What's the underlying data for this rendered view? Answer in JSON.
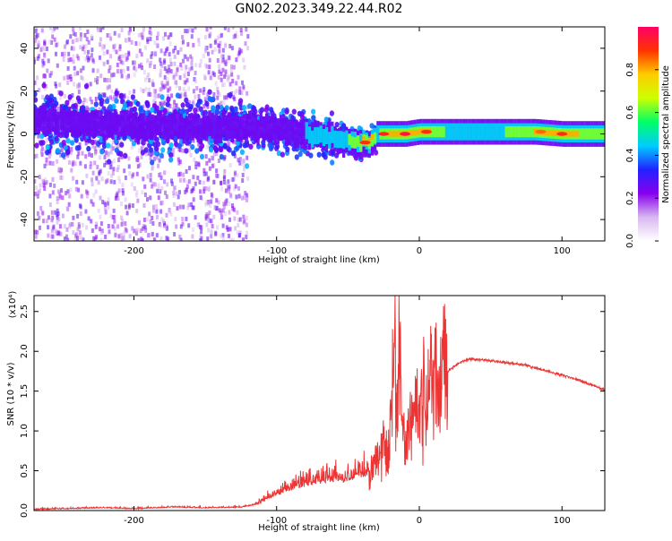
{
  "title": "GN02.2023.349.22.44.R02",
  "chart_data": [
    {
      "type": "heatmap",
      "xlabel": "Height of straight line (km)",
      "ylabel": "Frequency (Hz)",
      "xlim": [
        -270,
        130
      ],
      "ylim": [
        -50,
        50
      ],
      "x_ticks": [
        -200,
        -100,
        0,
        100
      ],
      "x_tick_labels": [
        "-200",
        "-100",
        "0",
        "100"
      ],
      "y_ticks": [
        -40,
        -20,
        0,
        20,
        40
      ],
      "y_tick_labels": [
        "-40",
        "-20",
        "0",
        "20",
        "40"
      ],
      "grid": false,
      "colorbar": {
        "label": "Normalized spectral amplitude",
        "range": [
          0,
          1
        ],
        "ticks": [
          0.0,
          0.2,
          0.4,
          0.6,
          0.8
        ],
        "tick_labels": [
          "0.0",
          "0.2",
          "0.4",
          "0.6",
          "0.8"
        ],
        "colormap": [
          "#ffffff",
          "#d8b8f0",
          "#8800ee",
          "#2222ff",
          "#00ccff",
          "#00ff66",
          "#ccff00",
          "#ffcc00",
          "#ff3300",
          "#ff0066"
        ]
      },
      "band": {
        "x": [
          -270,
          -250,
          -200,
          -150,
          -120,
          -100,
          -80,
          -60,
          -45,
          -35,
          -30,
          -20,
          -10,
          0,
          20,
          50,
          80,
          100,
          130
        ],
        "center_freq": [
          7,
          5,
          4,
          3,
          3,
          2,
          0,
          -2,
          -4,
          -4,
          0,
          0,
          0,
          1,
          1,
          1,
          1,
          0,
          0
        ],
        "peak_amplitude": [
          0.3,
          0.35,
          0.3,
          0.3,
          0.35,
          0.4,
          0.45,
          0.5,
          0.7,
          0.9,
          0.55,
          0.9,
          0.95,
          0.95,
          0.55,
          0.55,
          0.8,
          0.9,
          0.6
        ]
      }
    },
    {
      "type": "line",
      "xlabel": "Height of straight line (km)",
      "ylabel": "SNR (10 * v/v)",
      "y_scale_label": "(x10⁴)",
      "xlim": [
        -270,
        130
      ],
      "ylim": [
        0,
        2.7
      ],
      "x_ticks": [
        -200,
        -100,
        0,
        100
      ],
      "x_tick_labels": [
        "-200",
        "-100",
        "0",
        "100"
      ],
      "y_ticks": [
        0.0,
        0.5,
        1.0,
        1.5,
        2.0,
        2.5
      ],
      "y_tick_labels": [
        "0.0",
        "0.5",
        "1.0",
        "1.5",
        "2.0",
        "2.5"
      ],
      "grid": false,
      "series": [
        {
          "color": "#ee3333",
          "x": [
            -270,
            -250,
            -220,
            -200,
            -170,
            -150,
            -125,
            -112,
            -105,
            -98,
            -90,
            -80,
            -72,
            -65,
            -58,
            -52,
            -47,
            -43,
            -40,
            -37,
            -34,
            -32,
            -30,
            -28,
            -26,
            -24,
            -22,
            -20,
            -18,
            -17,
            -16,
            -14,
            -12,
            -10,
            -8,
            -6,
            -4,
            -2,
            0,
            2,
            4,
            6,
            8,
            10,
            12,
            14,
            16,
            20,
            25,
            30,
            35,
            40,
            50,
            60,
            70,
            80,
            90,
            100,
            110,
            120,
            130
          ],
          "y": [
            0.01,
            0.02,
            0.03,
            0.02,
            0.04,
            0.03,
            0.04,
            0.08,
            0.15,
            0.2,
            0.25,
            0.3,
            0.33,
            0.35,
            0.36,
            0.34,
            0.38,
            0.4,
            0.4,
            0.42,
            0.45,
            0.6,
            0.7,
            0.8,
            0.95,
            0.9,
            0.6,
            1.1,
            2.0,
            2.65,
            1.2,
            2.1,
            1.2,
            0.8,
            1.0,
            1.3,
            1.1,
            1.3,
            1.15,
            1.5,
            1.45,
            1.3,
            1.9,
            1.65,
            1.55,
            1.5,
            1.8,
            1.75,
            1.82,
            1.87,
            1.9,
            1.9,
            1.88,
            1.86,
            1.84,
            1.8,
            1.75,
            1.7,
            1.65,
            1.58,
            1.52
          ]
        }
      ]
    }
  ]
}
